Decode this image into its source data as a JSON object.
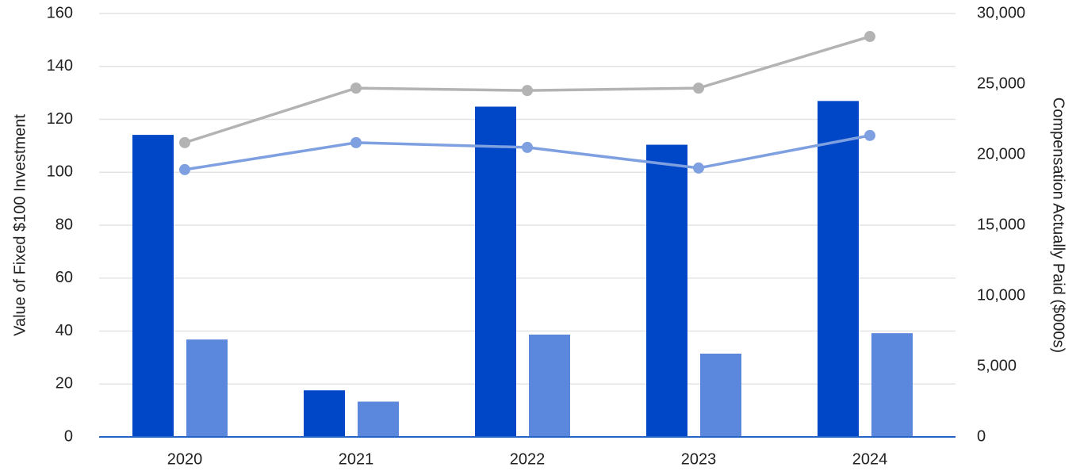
{
  "chart_data": {
    "type": "bar",
    "y_axis_label": "Value of Fixed $100 Investment",
    "y2_axis_label": "Compensation Actually Paid ($000s)",
    "categories": [
      "2020",
      "2021",
      "2022",
      "2023",
      "2024"
    ],
    "ylim": [
      0,
      160
    ],
    "yticks": [
      0,
      20,
      40,
      60,
      80,
      100,
      120,
      140,
      160
    ],
    "y2lim": [
      0,
      30000
    ],
    "y2ticks": [
      0,
      {
        "value": 5000,
        "label": "5,000"
      },
      {
        "value": 10000,
        "label": "10,000"
      },
      {
        "value": 15000,
        "label": "15,000"
      },
      {
        "value": 20000,
        "label": "20,000"
      },
      {
        "value": 25000,
        "label": "25,000"
      },
      {
        "value": 30000,
        "label": "30,000"
      }
    ],
    "grid": true,
    "series": [
      {
        "type": "bar",
        "axis": "y2",
        "color": "#0047c8",
        "values": [
          21400,
          3300,
          23400,
          20700,
          23800
        ]
      },
      {
        "type": "bar",
        "axis": "y2",
        "color": "#5b87dc",
        "values": [
          6900,
          2500,
          7250,
          5900,
          7350
        ]
      },
      {
        "type": "line",
        "axis": "y",
        "color": "#b3b3b3",
        "values": [
          111.2,
          131.8,
          130.9,
          131.8,
          151.3
        ]
      },
      {
        "type": "line",
        "axis": "y",
        "color": "#7ea0e0",
        "values": [
          101,
          111.2,
          109.4,
          101.6,
          113.9
        ]
      }
    ]
  }
}
